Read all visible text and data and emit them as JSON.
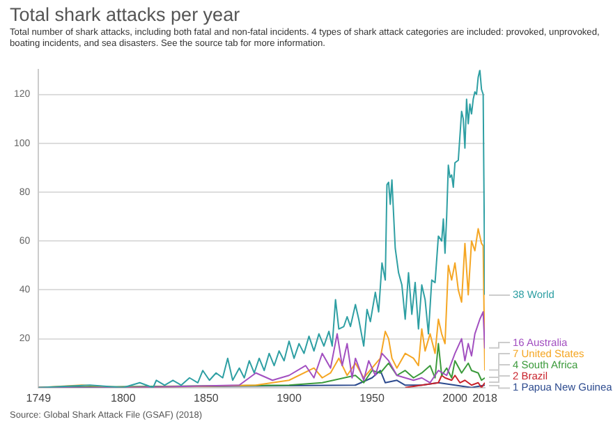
{
  "chart_data": {
    "type": "line",
    "title": "Total shark attacks per year",
    "subtitle": "Total number of shark attacks, including both fatal and non-fatal incidents. 4 types of shark attack categories are included: provoked, unprovoked, boating incidents, and sea disasters. See the source tab for more information.",
    "xlim": [
      1749,
      2018
    ],
    "xticks": [
      1749,
      1800,
      1850,
      1900,
      1950,
      2000,
      2018
    ],
    "ylim": [
      0,
      130
    ],
    "yticks": [
      20,
      40,
      60,
      80,
      100,
      120
    ],
    "grid": "y",
    "annotations": [
      "Source: Global Shark Attack File (GSAF) (2018)"
    ],
    "series": [
      {
        "name": "World",
        "color": "#2e9fa3",
        "x": [
          1749,
          1780,
          1800,
          1810,
          1818,
          1820,
          1825,
          1830,
          1835,
          1840,
          1845,
          1848,
          1852,
          1856,
          1860,
          1863,
          1866,
          1870,
          1873,
          1876,
          1879,
          1882,
          1885,
          1888,
          1891,
          1894,
          1897,
          1900,
          1903,
          1906,
          1909,
          1912,
          1915,
          1918,
          1921,
          1924,
          1926,
          1928,
          1930,
          1933,
          1935,
          1937,
          1940,
          1942,
          1945,
          1947,
          1949,
          1952,
          1954,
          1956,
          1958,
          1959,
          1960,
          1961,
          1962,
          1964,
          1966,
          1968,
          1970,
          1972,
          1974,
          1976,
          1978,
          1980,
          1982,
          1984,
          1986,
          1988,
          1990,
          1992,
          1993,
          1994,
          1995,
          1996,
          1997,
          1998,
          1999,
          2000,
          2002,
          2004,
          2005,
          2006,
          2007,
          2008,
          2009,
          2010,
          2011,
          2012,
          2013,
          2014,
          2015,
          2016,
          2017,
          2018
        ],
        "values": [
          0,
          1,
          0,
          2,
          0,
          3,
          1,
          3,
          1,
          4,
          2,
          7,
          3,
          6,
          4,
          12,
          3,
          8,
          4,
          11,
          6,
          12,
          7,
          14,
          9,
          15,
          11,
          19,
          12,
          18,
          14,
          21,
          15,
          22,
          17,
          23,
          17,
          36,
          24,
          25,
          29,
          25,
          34,
          28,
          17,
          32,
          27,
          39,
          31,
          51,
          44,
          83,
          84,
          75,
          85,
          57,
          47,
          42,
          28,
          47,
          30,
          43,
          24,
          42,
          36,
          22,
          44,
          43,
          62,
          60,
          69,
          55,
          70,
          91,
          86,
          87,
          82,
          92,
          93,
          113,
          110,
          98,
          118,
          108,
          116,
          112,
          118,
          121,
          120,
          127,
          130,
          122,
          120,
          38
        ],
        "value_labels": [
          null,
          null,
          null,
          null,
          null,
          null,
          null,
          null,
          null,
          null,
          null,
          null,
          null,
          null,
          null,
          null,
          null,
          null,
          null,
          null,
          null,
          null,
          null,
          null,
          null,
          null,
          null,
          null,
          null,
          null,
          null,
          null,
          null,
          null,
          null,
          null,
          null,
          null,
          null,
          null,
          null,
          null,
          null,
          null,
          null,
          null,
          null,
          null,
          null,
          null,
          null,
          null,
          null,
          null,
          null,
          null,
          null,
          null,
          null,
          null,
          null,
          null,
          null,
          null,
          null,
          null,
          null,
          null,
          null,
          null,
          null,
          null,
          null,
          null,
          null,
          null,
          null,
          null,
          null,
          null,
          null,
          null,
          null,
          null,
          null,
          null,
          null,
          null,
          null,
          null,
          null,
          null,
          null,
          "38"
        ]
      },
      {
        "name": "Australia",
        "color": "#a24fc0",
        "x": [
          1749,
          1800,
          1870,
          1880,
          1890,
          1900,
          1910,
          1915,
          1920,
          1925,
          1929,
          1932,
          1935,
          1938,
          1940,
          1945,
          1948,
          1952,
          1956,
          1960,
          1965,
          1970,
          1975,
          1980,
          1985,
          1990,
          1995,
          2000,
          2004,
          2006,
          2008,
          2010,
          2012,
          2015,
          2017,
          2018
        ],
        "values": [
          0,
          0,
          1,
          6,
          3,
          5,
          9,
          4,
          14,
          8,
          22,
          9,
          18,
          4,
          12,
          3,
          11,
          5,
          14,
          11,
          5,
          4,
          3,
          4,
          2,
          7,
          5,
          14,
          20,
          11,
          18,
          13,
          22,
          28,
          31,
          16
        ],
        "value_labels": [
          null,
          null,
          null,
          null,
          null,
          null,
          null,
          null,
          null,
          null,
          null,
          null,
          null,
          null,
          null,
          null,
          null,
          null,
          null,
          null,
          null,
          null,
          null,
          null,
          null,
          null,
          null,
          null,
          null,
          null,
          null,
          null,
          null,
          null,
          null,
          "16"
        ]
      },
      {
        "name": "United States",
        "color": "#f5a623",
        "x": [
          1749,
          1775,
          1800,
          1880,
          1900,
          1915,
          1920,
          1925,
          1930,
          1935,
          1940,
          1945,
          1955,
          1958,
          1960,
          1962,
          1965,
          1970,
          1975,
          1978,
          1980,
          1982,
          1985,
          1988,
          1990,
          1992,
          1994,
          1996,
          1998,
          2000,
          2002,
          2004,
          2006,
          2008,
          2010,
          2012,
          2014,
          2016,
          2017,
          2018
        ],
        "values": [
          0,
          1,
          0,
          1,
          3,
          8,
          4,
          6,
          12,
          5,
          10,
          4,
          12,
          23,
          20,
          12,
          8,
          14,
          12,
          9,
          24,
          15,
          22,
          14,
          28,
          22,
          18,
          50,
          44,
          51,
          40,
          35,
          59,
          38,
          60,
          56,
          65,
          59,
          58,
          7
        ],
        "value_labels": [
          null,
          null,
          null,
          null,
          null,
          null,
          null,
          null,
          null,
          null,
          null,
          null,
          null,
          null,
          null,
          null,
          null,
          null,
          null,
          null,
          null,
          null,
          null,
          null,
          null,
          null,
          null,
          null,
          null,
          null,
          null,
          null,
          null,
          null,
          null,
          null,
          null,
          null,
          null,
          "7"
        ]
      },
      {
        "name": "South Africa",
        "color": "#3b9a3b",
        "x": [
          1749,
          1900,
          1920,
          1940,
          1945,
          1950,
          1955,
          1960,
          1965,
          1970,
          1975,
          1980,
          1985,
          1988,
          1990,
          1992,
          1995,
          1998,
          2000,
          2004,
          2008,
          2010,
          2014,
          2016,
          2018
        ],
        "values": [
          0,
          1,
          2,
          5,
          2,
          7,
          6,
          10,
          5,
          7,
          4,
          6,
          9,
          4,
          18,
          5,
          8,
          4,
          11,
          6,
          10,
          7,
          6,
          3,
          4
        ],
        "value_labels": [
          null,
          null,
          null,
          null,
          null,
          null,
          null,
          null,
          null,
          null,
          null,
          null,
          null,
          null,
          null,
          null,
          null,
          null,
          null,
          null,
          null,
          null,
          null,
          null,
          "4"
        ]
      },
      {
        "name": "Brazil",
        "color": "#c8232c",
        "x": [
          1970,
          1990,
          1992,
          1994,
          1998,
          2000,
          2003,
          2006,
          2010,
          2014,
          2016,
          2018
        ],
        "values": [
          0,
          2,
          5,
          4,
          3,
          5,
          2,
          3,
          1,
          2,
          0,
          2
        ],
        "value_labels": [
          null,
          null,
          null,
          null,
          null,
          null,
          null,
          null,
          null,
          null,
          null,
          "2"
        ]
      },
      {
        "name": "Papua New Guinea",
        "color": "#2c4a8e",
        "x": [
          1749,
          1940,
          1950,
          1955,
          1958,
          1965,
          1970,
          1980,
          1990,
          2000,
          2010,
          2018
        ],
        "values": [
          0,
          1,
          4,
          7,
          2,
          3,
          1,
          1,
          2,
          1,
          0,
          1
        ],
        "value_labels": [
          null,
          null,
          null,
          null,
          null,
          null,
          null,
          null,
          null,
          null,
          null,
          "1"
        ]
      }
    ]
  }
}
